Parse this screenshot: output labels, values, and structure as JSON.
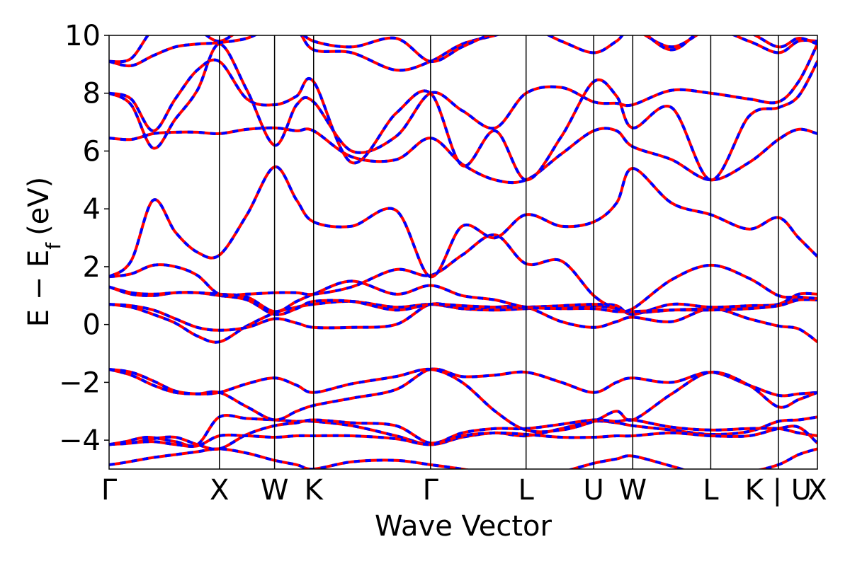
{
  "chart_data": {
    "type": "line",
    "title": "",
    "xlabel": "Wave Vector",
    "ylabel": "E − E",
    "ylabel_subscript": "f",
    "ylabel_unit": "(eV)",
    "ylim": [
      -5,
      10
    ],
    "yticks": [
      -4,
      -2,
      0,
      2,
      4,
      6,
      8,
      10
    ],
    "ytick_labels": [
      "−4",
      "−2",
      "0",
      "2",
      "4",
      "6",
      "8",
      "10"
    ],
    "grid": false,
    "legend": "none",
    "kpath": [
      {
        "label": "Γ",
        "x": 0.0
      },
      {
        "label": "X",
        "x": 1.0
      },
      {
        "label": "W",
        "x": 1.5
      },
      {
        "label": "K",
        "x": 1.854
      },
      {
        "label": "Γ",
        "x": 2.914
      },
      {
        "label": "L",
        "x": 3.78
      },
      {
        "label": "U",
        "x": 4.393
      },
      {
        "label": "W",
        "x": 4.747
      },
      {
        "label": "L",
        "x": 5.454
      },
      {
        "label": "K | U",
        "x": 6.067
      },
      {
        "label": "X",
        "x": 6.421
      }
    ],
    "xlim": [
      0,
      6.421
    ],
    "series_colors": {
      "solid": "#ff0000",
      "dashed": "#0000ff"
    },
    "bands": [
      {
        "x": [
          0,
          0.1,
          0.25,
          0.4,
          0.6,
          0.8,
          1.0,
          1.25,
          1.5,
          1.7,
          1.854,
          2.2,
          2.6,
          2.914,
          3.2,
          3.5,
          3.78,
          4.1,
          4.393,
          4.6,
          4.747,
          5.1,
          5.454,
          5.8,
          6.067,
          6.25,
          6.421
        ],
        "y": [
          -4.85,
          -4.8,
          -4.7,
          -4.6,
          -4.5,
          -4.4,
          -4.3,
          -4.45,
          -4.7,
          -4.85,
          -5.0,
          -4.75,
          -4.7,
          -4.85,
          -5.0,
          -5.2,
          -5.3,
          -5.1,
          -4.8,
          -4.65,
          -4.55,
          -4.9,
          -5.25,
          -5.1,
          -4.85,
          -4.5,
          -4.3
        ]
      },
      {
        "x": [
          0,
          0.15,
          0.35,
          0.6,
          0.8,
          1.0,
          1.25,
          1.5,
          1.7,
          1.854,
          2.2,
          2.6,
          2.914,
          3.2,
          3.5,
          3.78,
          4.1,
          4.393,
          4.6,
          4.747,
          5.1,
          5.454,
          5.8,
          6.067,
          6.25,
          6.421
        ],
        "y": [
          -4.15,
          -4.05,
          -3.9,
          -4.05,
          -4.15,
          -3.2,
          -3.25,
          -3.3,
          -3.35,
          -3.35,
          -3.5,
          -3.85,
          -4.15,
          -3.9,
          -3.75,
          -3.85,
          -3.6,
          -3.35,
          -3.4,
          -3.5,
          -3.65,
          -3.8,
          -3.7,
          -3.35,
          -3.3,
          -3.2
        ]
      },
      {
        "x": [
          0,
          0.2,
          0.4,
          0.6,
          0.8,
          1.0,
          1.25,
          1.5,
          1.7,
          1.854,
          2.2,
          2.6,
          2.914,
          3.2,
          3.5,
          3.78,
          4.1,
          4.393,
          4.6,
          4.747,
          5.1,
          5.454,
          5.8,
          6.067,
          6.25,
          6.421
        ],
        "y": [
          -4.15,
          -4.1,
          -3.95,
          -3.9,
          -4.15,
          -4.3,
          -3.8,
          -3.5,
          -3.4,
          -3.3,
          -3.4,
          -3.5,
          -4.1,
          -3.75,
          -3.6,
          -3.6,
          -3.45,
          -3.3,
          -3.35,
          -3.3,
          -3.55,
          -3.65,
          -3.6,
          -3.6,
          -3.75,
          -3.85
        ]
      },
      {
        "x": [
          0,
          0.2,
          0.4,
          0.6,
          0.8,
          1.0,
          1.25,
          1.5,
          1.7,
          1.854,
          2.2,
          2.6,
          2.914,
          3.2,
          3.5,
          3.78,
          4.1,
          4.393,
          4.6,
          4.747,
          5.1,
          5.454,
          5.8,
          6.067,
          6.25,
          6.421
        ],
        "y": [
          -4.15,
          -4.1,
          -4.05,
          -4.15,
          -4.2,
          -3.85,
          -3.85,
          -3.9,
          -3.85,
          -3.85,
          -3.85,
          -3.95,
          -4.15,
          -3.85,
          -3.75,
          -3.8,
          -3.9,
          -3.9,
          -3.85,
          -3.85,
          -3.75,
          -3.85,
          -3.85,
          -3.6,
          -3.55,
          -4.1
        ]
      },
      {
        "x": [
          0,
          0.2,
          0.4,
          0.6,
          0.8,
          1.0,
          1.25,
          1.5,
          1.7,
          1.854,
          2.2,
          2.6,
          2.914,
          3.2,
          3.5,
          3.78,
          4.1,
          4.393,
          4.6,
          4.747,
          5.1,
          5.454,
          5.8,
          6.067,
          6.25,
          6.421
        ],
        "y": [
          -1.55,
          -1.75,
          -2.1,
          -2.35,
          -2.4,
          -2.35,
          -2.85,
          -3.3,
          -3.0,
          -2.8,
          -2.55,
          -2.25,
          -1.55,
          -1.8,
          -1.75,
          -1.65,
          -2.0,
          -2.35,
          -2.0,
          -1.85,
          -2.0,
          -1.65,
          -2.1,
          -2.45,
          -2.4,
          -2.35
        ]
      },
      {
        "x": [
          0,
          0.2,
          0.4,
          0.6,
          0.8,
          1.0,
          1.25,
          1.5,
          1.7,
          1.854,
          2.2,
          2.6,
          2.914,
          3.2,
          3.5,
          3.78,
          4.1,
          4.393,
          4.6,
          4.747,
          5.1,
          5.454,
          5.8,
          6.067,
          6.25,
          6.421
        ],
        "y": [
          -1.55,
          -1.65,
          -1.95,
          -2.3,
          -2.4,
          -2.35,
          -2.05,
          -1.85,
          -2.1,
          -2.35,
          -2.05,
          -1.8,
          -1.55,
          -2.0,
          -3.0,
          -3.65,
          -3.65,
          -3.35,
          -3.0,
          -3.3,
          -2.4,
          -1.65,
          -2.1,
          -2.85,
          -2.6,
          -2.35
        ]
      },
      {
        "x": [
          0,
          0.2,
          0.4,
          0.6,
          0.8,
          1.0,
          1.25,
          1.5,
          1.7,
          1.854,
          2.2,
          2.6,
          2.914,
          3.2,
          3.5,
          3.78,
          4.1,
          4.393,
          4.6,
          4.747,
          5.1,
          5.454,
          5.8,
          6.067,
          6.25,
          6.421
        ],
        "y": [
          0.7,
          0.6,
          0.35,
          0.05,
          -0.4,
          -0.6,
          -0.05,
          0.4,
          0.6,
          0.7,
          0.8,
          0.6,
          0.7,
          0.55,
          0.5,
          0.55,
          0.6,
          0.65,
          0.55,
          0.4,
          0.5,
          0.55,
          0.6,
          0.65,
          0.9,
          0.9
        ]
      },
      {
        "x": [
          0,
          0.2,
          0.4,
          0.6,
          0.8,
          1.0,
          1.25,
          1.5,
          1.7,
          1.854,
          2.2,
          2.6,
          2.914,
          3.2,
          3.5,
          3.78,
          4.1,
          4.393,
          4.6,
          4.747,
          5.1,
          5.454,
          5.8,
          6.067,
          6.25,
          6.421
        ],
        "y": [
          0.7,
          0.65,
          0.5,
          0.2,
          -0.1,
          -0.2,
          -0.1,
          0.2,
          0.05,
          -0.1,
          -0.1,
          0.0,
          0.7,
          0.55,
          0.6,
          0.6,
          0.1,
          -0.1,
          0.1,
          0.25,
          0.1,
          0.55,
          0.2,
          -0.05,
          -0.15,
          -0.6
        ]
      },
      {
        "x": [
          0,
          0.2,
          0.4,
          0.6,
          0.8,
          1.0,
          1.25,
          1.5,
          1.7,
          1.854,
          2.2,
          2.6,
          2.914,
          3.2,
          3.5,
          3.78,
          4.1,
          4.393,
          4.6,
          4.747,
          5.1,
          5.454,
          5.8,
          6.067,
          6.25,
          6.421
        ],
        "y": [
          1.3,
          1.05,
          1.0,
          1.1,
          1.1,
          1.0,
          0.85,
          0.35,
          0.55,
          0.8,
          0.8,
          0.5,
          0.7,
          0.65,
          0.6,
          0.6,
          0.65,
          0.7,
          0.65,
          0.35,
          0.7,
          0.6,
          0.65,
          0.7,
          1.05,
          1.05
        ]
      },
      {
        "x": [
          0,
          0.2,
          0.4,
          0.6,
          0.8,
          1.0,
          1.25,
          1.5,
          1.7,
          1.854,
          2.2,
          2.6,
          2.914,
          3.2,
          3.5,
          3.78,
          4.1,
          4.393,
          4.6,
          4.747,
          5.1,
          5.454,
          5.8,
          6.067,
          6.25,
          6.421
        ],
        "y": [
          1.3,
          1.1,
          1.05,
          1.1,
          1.1,
          1.05,
          0.95,
          0.45,
          0.8,
          1.05,
          1.5,
          1.05,
          1.35,
          1.0,
          0.85,
          0.6,
          0.55,
          0.55,
          0.45,
          0.45,
          0.5,
          0.5,
          0.55,
          0.65,
          0.85,
          0.85
        ]
      },
      {
        "x": [
          0,
          0.2,
          0.4,
          0.6,
          0.8,
          1.0,
          1.25,
          1.5,
          1.7,
          1.854,
          2.2,
          2.6,
          2.914,
          3.2,
          3.5,
          3.78,
          4.1,
          4.393,
          4.6,
          4.747,
          5.1,
          5.454,
          5.8,
          6.067,
          6.25,
          6.421
        ],
        "y": [
          1.65,
          1.75,
          2.05,
          2.0,
          1.7,
          1.05,
          1.05,
          1.1,
          1.1,
          1.05,
          1.3,
          1.9,
          1.7,
          2.4,
          3.1,
          2.1,
          2.2,
          1.0,
          0.55,
          0.55,
          1.55,
          2.05,
          1.6,
          1.0,
          0.95,
          0.9
        ]
      },
      {
        "x": [
          0,
          0.2,
          0.4,
          0.6,
          0.8,
          1.0,
          1.25,
          1.5,
          1.7,
          1.854,
          2.2,
          2.6,
          2.914,
          3.2,
          3.5,
          3.78,
          4.1,
          4.393,
          4.6,
          4.747,
          5.1,
          5.454,
          5.8,
          6.067,
          6.25,
          6.421
        ],
        "y": [
          1.65,
          2.2,
          4.3,
          3.2,
          2.5,
          2.4,
          3.8,
          5.45,
          4.3,
          3.55,
          3.4,
          3.95,
          1.65,
          3.4,
          3.0,
          3.8,
          3.4,
          3.55,
          4.2,
          5.4,
          4.2,
          3.8,
          3.3,
          3.7,
          3.0,
          2.35
        ]
      },
      {
        "x": [
          0,
          0.2,
          0.4,
          0.6,
          0.8,
          1.0,
          1.25,
          1.5,
          1.7,
          1.854,
          2.2,
          2.6,
          2.914,
          3.2,
          3.5,
          3.78,
          4.1,
          4.393,
          4.6,
          4.747,
          5.1,
          5.454,
          5.8,
          6.067,
          6.25,
          6.421
        ],
        "y": [
          6.45,
          6.4,
          6.6,
          6.65,
          6.65,
          6.6,
          6.75,
          6.8,
          6.7,
          6.7,
          5.8,
          5.7,
          6.45,
          5.55,
          5.0,
          5.0,
          5.9,
          6.7,
          6.7,
          6.15,
          5.7,
          5.0,
          5.6,
          6.4,
          6.75,
          6.6
        ]
      },
      {
        "x": [
          0,
          0.2,
          0.4,
          0.6,
          0.8,
          1.0,
          1.25,
          1.5,
          1.7,
          1.854,
          2.2,
          2.6,
          2.914,
          3.2,
          3.5,
          3.78,
          4.1,
          4.393,
          4.6,
          4.747,
          5.1,
          5.454,
          5.8,
          6.067,
          6.25,
          6.421
        ],
        "y": [
          8.0,
          7.6,
          6.1,
          7.1,
          8.1,
          9.7,
          8.1,
          6.2,
          7.6,
          7.7,
          6.0,
          6.5,
          8.0,
          7.4,
          6.8,
          8.0,
          8.2,
          7.7,
          7.65,
          7.6,
          8.1,
          8.0,
          7.8,
          7.7,
          8.4,
          9.7
        ]
      },
      {
        "x": [
          0,
          0.2,
          0.4,
          0.6,
          0.8,
          1.0,
          1.25,
          1.5,
          1.7,
          1.854,
          2.2,
          2.6,
          2.914,
          3.2,
          3.5,
          3.78,
          4.1,
          4.393,
          4.6,
          4.747,
          5.1,
          5.454,
          5.8,
          6.067,
          6.25,
          6.421
        ],
        "y": [
          8.0,
          7.8,
          6.7,
          7.8,
          8.8,
          9.1,
          7.8,
          7.6,
          7.9,
          8.4,
          5.6,
          7.3,
          8.0,
          5.5,
          6.7,
          5.0,
          6.5,
          8.4,
          7.9,
          6.8,
          7.5,
          5.0,
          7.2,
          7.5,
          7.9,
          9.1
        ]
      },
      {
        "x": [
          0,
          0.2,
          0.4,
          0.6,
          0.8,
          1.0,
          1.25,
          1.5,
          1.7,
          1.854,
          2.2,
          2.6,
          2.914,
          3.2,
          3.5,
          3.78,
          4.1,
          4.393,
          4.6,
          4.747,
          5.1,
          5.454,
          5.8,
          6.067,
          6.25,
          6.421
        ],
        "y": [
          9.1,
          9.2,
          10.2,
          10.3,
          10.2,
          9.8,
          10.3,
          10.4,
          10.2,
          9.5,
          9.4,
          8.8,
          9.1,
          9.7,
          10.0,
          10.3,
          9.8,
          9.4,
          9.8,
          10.2,
          9.6,
          10.2,
          9.8,
          9.4,
          9.8,
          9.8
        ]
      },
      {
        "x": [
          0,
          0.2,
          0.4,
          0.6,
          0.8,
          1.0,
          1.25,
          1.5,
          1.7,
          1.854,
          2.2,
          2.6,
          2.914,
          3.2,
          3.5,
          3.78,
          4.1,
          4.393,
          4.6,
          4.747,
          5.1,
          5.454,
          5.8,
          6.067,
          6.25,
          6.421
        ],
        "y": [
          9.1,
          8.95,
          9.3,
          9.6,
          9.7,
          9.75,
          9.9,
          10.3,
          10.2,
          9.8,
          9.6,
          9.9,
          9.1,
          9.6,
          10.1,
          10.4,
          10.2,
          10.3,
          10.3,
          10.4,
          9.5,
          10.4,
          10.1,
          9.6,
          9.9,
          9.7
        ]
      }
    ]
  }
}
